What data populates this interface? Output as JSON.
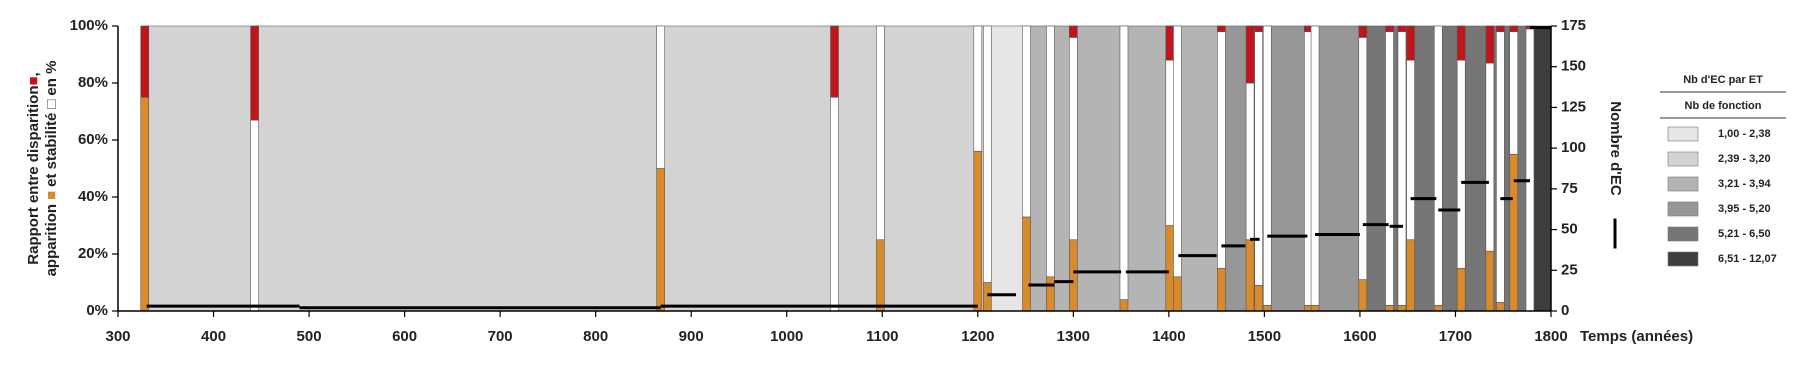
{
  "chart_data": {
    "type": "composite",
    "x_label": "Temps (années)",
    "y_label": [
      "Rapport entre disparition",
      ",",
      "apparition",
      "et stabilité",
      "en %"
    ],
    "y2_label": "Nombre d'EC",
    "xlim": [
      300,
      1800
    ],
    "xticks": [
      300,
      400,
      500,
      600,
      700,
      800,
      900,
      1000,
      1100,
      1200,
      1300,
      1400,
      1500,
      1600,
      1700,
      1800
    ],
    "ylim": [
      0,
      100
    ],
    "yticks": [
      {
        "value": 0,
        "label": "0%"
      },
      {
        "value": 20,
        "label": "20%"
      },
      {
        "value": 40,
        "label": "40%"
      },
      {
        "value": 60,
        "label": "60%"
      },
      {
        "value": 80,
        "label": "80%"
      },
      {
        "value": 100,
        "label": "100%"
      }
    ],
    "y2lim": [
      0,
      175
    ],
    "y2ticks": [
      0,
      25,
      50,
      75,
      100,
      125,
      150,
      175
    ],
    "periods": {
      "start": [
        328,
        1210,
        1251,
        1455,
        1603,
        1778
      ],
      "end": [
        1210,
        1251,
        1455,
        1603,
        1778,
        1800
      ],
      "class": [
        1,
        0,
        2,
        3,
        4,
        5
      ]
    },
    "bars": {
      "x": [
        328,
        443,
        868,
        1050,
        1098,
        1200,
        1210,
        1251,
        1276,
        1300,
        1353,
        1401,
        1409,
        1455,
        1485,
        1494,
        1503,
        1546,
        1553,
        1603,
        1631,
        1644,
        1653,
        1682,
        1706,
        1736,
        1747,
        1761,
        1778
      ],
      "apparition": [
        75,
        0,
        50,
        0,
        25,
        56,
        10,
        33,
        12,
        25,
        4,
        30,
        12,
        15,
        25,
        9,
        2,
        2,
        2,
        11,
        2,
        2,
        25,
        2,
        15,
        21,
        3,
        55,
        0
      ],
      "stabilite": [
        0,
        67,
        50,
        75,
        75,
        44,
        90,
        67,
        88,
        71,
        96,
        58,
        88,
        83,
        55,
        89,
        98,
        96,
        98,
        85,
        96,
        96,
        63,
        98,
        73,
        66,
        95,
        43,
        99
      ],
      "disparition": [
        25,
        33,
        0,
        25,
        0,
        0,
        0,
        0,
        0,
        4,
        0,
        12,
        0,
        2,
        20,
        2,
        0,
        2,
        0,
        4,
        2,
        2,
        12,
        0,
        12,
        13,
        2,
        2,
        1
      ],
      "colors": [
        "#d98b2b",
        "#ffffff",
        "#c0151b"
      ]
    },
    "ec_segments": {
      "start": [
        330,
        490,
        868,
        1210,
        1253,
        1280,
        1300,
        1355,
        1410,
        1455,
        1485,
        1503,
        1553,
        1603,
        1631,
        1653,
        1682,
        1706,
        1747,
        1761,
        1778
      ],
      "end": [
        490,
        868,
        1200,
        1240,
        1280,
        1300,
        1350,
        1400,
        1450,
        1480,
        1495,
        1545,
        1600,
        1630,
        1645,
        1680,
        1705,
        1735,
        1760,
        1778,
        1800
      ],
      "values": [
        3,
        2,
        3,
        10,
        16,
        18,
        24,
        24,
        34,
        40,
        44,
        46,
        47,
        53,
        52,
        69,
        62,
        79,
        69,
        80,
        174
      ],
      "color": "#000000"
    },
    "legend": {
      "title": "Nb d'EC par ET",
      "subtitle": "Nb de fonction",
      "items": [
        {
          "label": "1,00 - 2,38",
          "color": "#e6e6e6"
        },
        {
          "label": "2,39 - 3,20",
          "color": "#d3d3d3"
        },
        {
          "label": "3,21 - 3,94",
          "color": "#b4b4b4"
        },
        {
          "label": "3,95 - 5,20",
          "color": "#979797"
        },
        {
          "label": "5,21 - 6,50",
          "color": "#767676"
        },
        {
          "label": "6,51 - 12,07",
          "color": "#3e3e3e"
        }
      ]
    }
  }
}
